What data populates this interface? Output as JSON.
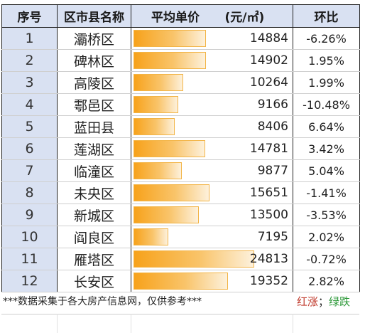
{
  "header": {
    "index": "序号",
    "district": "区市县名称",
    "price": "平均单价      (元/㎡)",
    "change": "环比"
  },
  "rows": [
    {
      "index": "1",
      "district": "灞桥区",
      "price": 14884,
      "price_text": "14884",
      "change": "-6.26%",
      "dir": "down"
    },
    {
      "index": "2",
      "district": "碑林区",
      "price": 14902,
      "price_text": "14902",
      "change": "1.95%",
      "dir": "up"
    },
    {
      "index": "3",
      "district": "高陵区",
      "price": 10264,
      "price_text": "10264",
      "change": "1.99%",
      "dir": "up"
    },
    {
      "index": "4",
      "district": "鄠邑区",
      "price": 9166,
      "price_text": "9166",
      "change": "-10.48%",
      "dir": "down"
    },
    {
      "index": "5",
      "district": "蓝田县",
      "price": 8406,
      "price_text": "8406",
      "change": "6.64%",
      "dir": "up"
    },
    {
      "index": "6",
      "district": "莲湖区",
      "price": 14781,
      "price_text": "14781",
      "change": "3.42%",
      "dir": "up"
    },
    {
      "index": "7",
      "district": "临潼区",
      "price": 9877,
      "price_text": "9877",
      "change": "5.04%",
      "dir": "up"
    },
    {
      "index": "8",
      "district": "未央区",
      "price": 15651,
      "price_text": "15651",
      "change": "-1.41%",
      "dir": "down"
    },
    {
      "index": "9",
      "district": "新城区",
      "price": 13500,
      "price_text": "13500",
      "change": "-3.53%",
      "dir": "down"
    },
    {
      "index": "10",
      "district": "阎良区",
      "price": 7195,
      "price_text": "7195",
      "change": "2.02%",
      "dir": "up"
    },
    {
      "index": "11",
      "district": "雁塔区",
      "price": 24813,
      "price_text": "24813",
      "change": "-0.72%",
      "dir": "down"
    },
    {
      "index": "12",
      "district": "长安区",
      "price": 19352,
      "price_text": "19352",
      "change": "2.82%",
      "dir": "up"
    }
  ],
  "footer": {
    "note": "***数据采集于各大房产信息网，仅供参考***",
    "legend_up": "红涨",
    "legend_sep": "；",
    "legend_down": "绿跌"
  },
  "colors": {
    "up": "#c0392b",
    "down": "#2e9a3a",
    "index_bg": "#d9e1f2",
    "bar": "#f7a21b"
  }
}
